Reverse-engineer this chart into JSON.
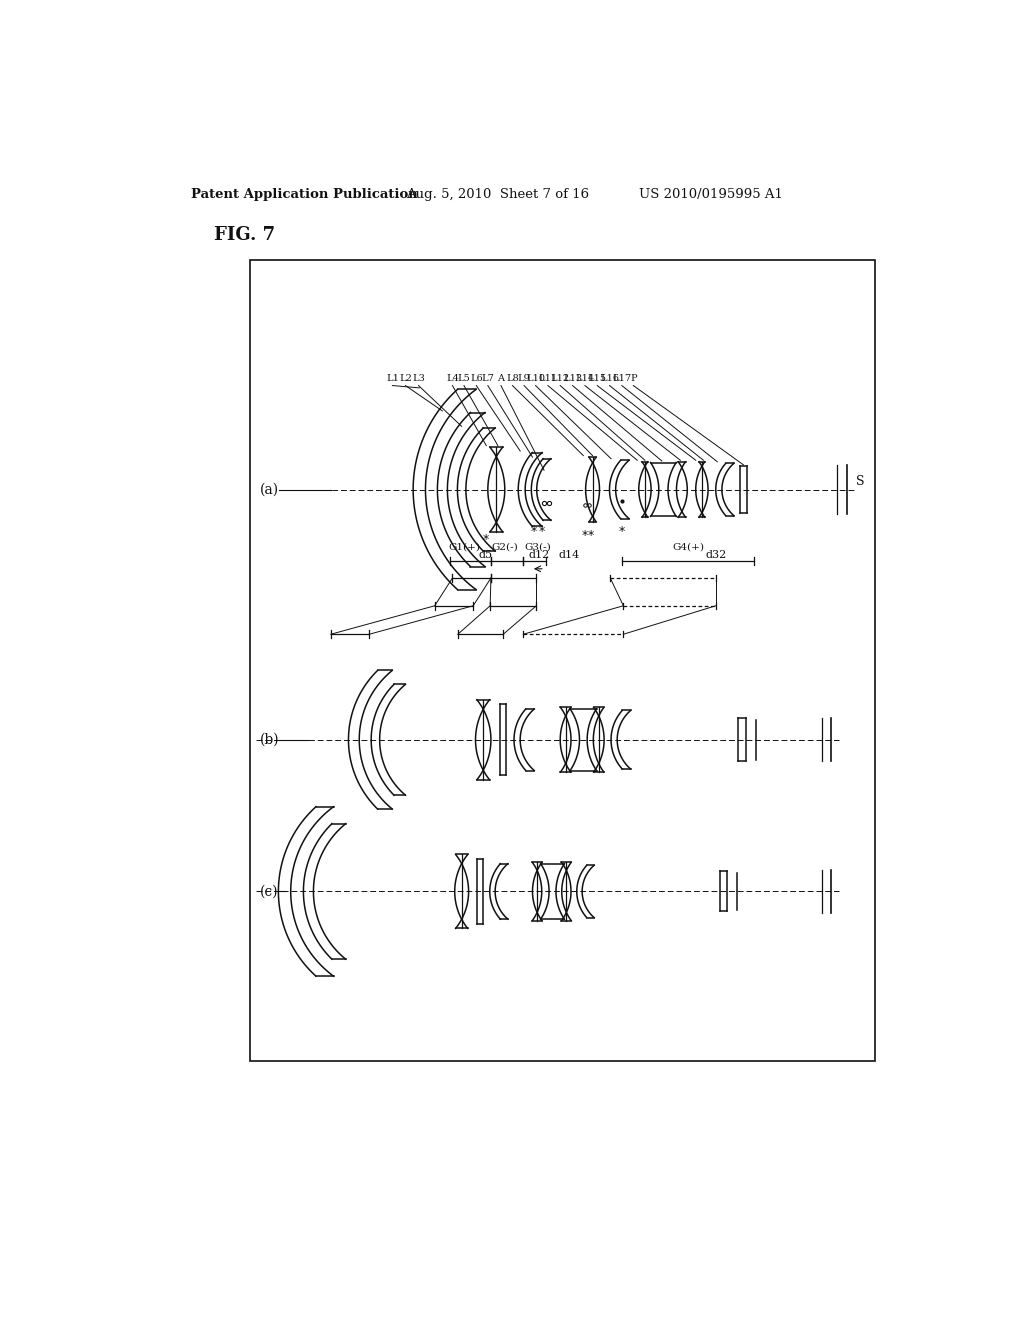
{
  "title": "FIG. 7",
  "header_left": "Patent Application Publication",
  "header_center": "Aug. 5, 2010  Sheet 7 of 16",
  "header_right": "US 2010/0195995 A1",
  "bg_color": "#ffffff",
  "box_color": "#000000",
  "label_a": "(a)",
  "label_b": "(b)",
  "label_c": "(c)",
  "label_S": "S",
  "dist_labels": [
    "d5",
    "d12",
    "d14",
    "d32"
  ],
  "group_labels": [
    "G1(+)",
    "G2(-)",
    "G3(-)",
    "G4(+)"
  ]
}
